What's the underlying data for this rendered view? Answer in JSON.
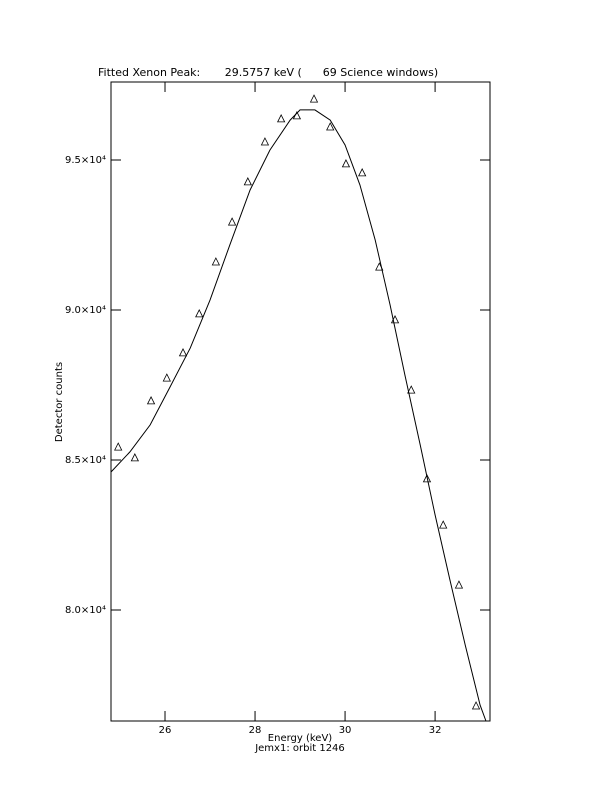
{
  "chart_data": {
    "type": "scatter",
    "title": "Fitted Xenon Peak:       29.5757 keV (      69 Science windows)",
    "x_label": "Energy (keV)",
    "subtitle": "Jemx1: orbit 1246",
    "y_label": "Detector counts",
    "xlim": [
      24.8,
      33.22
    ],
    "ylim": [
      76300,
      97600
    ],
    "xticks": [
      26,
      28,
      30,
      32
    ],
    "yticks": [
      {
        "value": 80000,
        "label": "8.0×10⁴"
      },
      {
        "value": 85000,
        "label": "8.5×10⁴"
      },
      {
        "value": 90000,
        "label": "9.0×10⁴"
      },
      {
        "value": 95000,
        "label": "9.5×10⁴"
      }
    ],
    "series": [
      {
        "type": "scatter",
        "marker": "triangle",
        "color": "#000000",
        "x": [
          24.96,
          25.33,
          25.69,
          26.04,
          26.4,
          26.76,
          27.13,
          27.49,
          27.84,
          28.22,
          28.58,
          28.93,
          29.31,
          29.67,
          30.02,
          30.38,
          30.76,
          31.11,
          31.47,
          31.82,
          32.18,
          32.53,
          32.91
        ],
        "values": [
          85430,
          85070,
          86970,
          87730,
          88570,
          89870,
          91600,
          92930,
          94270,
          95600,
          96370,
          96470,
          97030,
          96100,
          94870,
          94570,
          91430,
          89670,
          87330,
          84370,
          82830,
          80830,
          76800
        ]
      },
      {
        "type": "line",
        "color": "#000000",
        "x": [
          24.8,
          25.22,
          25.67,
          26.11,
          26.56,
          27,
          27.44,
          27.89,
          28.33,
          28.78,
          29,
          29.33,
          29.67,
          30,
          30.33,
          30.67,
          31,
          31.33,
          31.67,
          32,
          32.33,
          32.67,
          33,
          33.13
        ],
        "values": [
          84600,
          85270,
          86170,
          87430,
          88730,
          90330,
          92170,
          94000,
          95330,
          96330,
          96670,
          96670,
          96330,
          95500,
          94170,
          92330,
          90170,
          87830,
          85500,
          83170,
          81000,
          78830,
          76830,
          76300
        ]
      }
    ]
  }
}
